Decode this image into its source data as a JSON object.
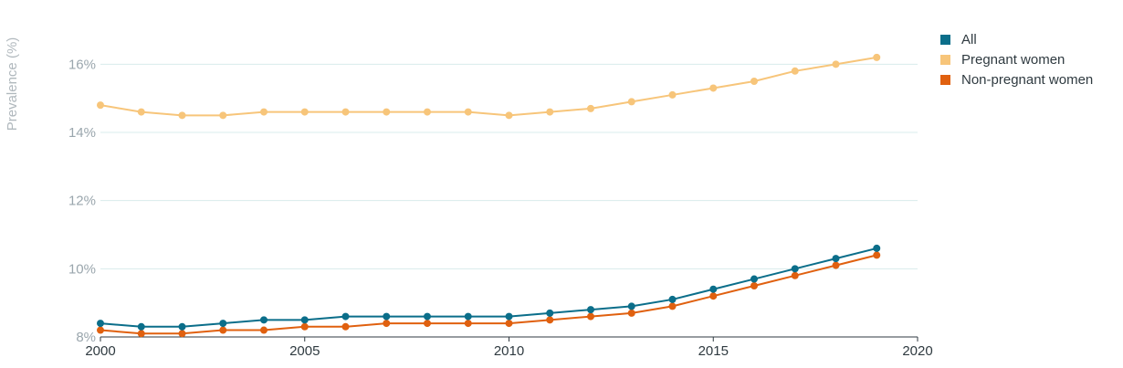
{
  "chart_data": {
    "type": "line",
    "title": "",
    "xlabel": "",
    "ylabel": "Prevalence (%)",
    "x": [
      2000,
      2001,
      2002,
      2003,
      2004,
      2005,
      2006,
      2007,
      2008,
      2009,
      2010,
      2011,
      2012,
      2013,
      2014,
      2015,
      2016,
      2017,
      2018,
      2019
    ],
    "xlim": [
      2000,
      2020
    ],
    "ylim": [
      8,
      17
    ],
    "x_ticks": [
      2000,
      2005,
      2010,
      2015,
      2020
    ],
    "y_ticks": [
      8,
      10,
      12,
      14,
      16
    ],
    "x_tick_labels": [
      "2000",
      "2005",
      "2010",
      "2015",
      "2020"
    ],
    "y_tick_labels": [
      "8%",
      "10%",
      "12%",
      "14%",
      "16%"
    ],
    "grid": "horizontal",
    "legend_position": "top-right",
    "series": [
      {
        "name": "All",
        "color": "#0b6e8a",
        "values": [
          8.4,
          8.3,
          8.3,
          8.4,
          8.5,
          8.5,
          8.6,
          8.6,
          8.6,
          8.6,
          8.6,
          8.7,
          8.8,
          8.9,
          9.1,
          9.4,
          9.7,
          10.0,
          10.3,
          10.6
        ]
      },
      {
        "name": "Pregnant women",
        "color": "#f7c57a",
        "values": [
          14.8,
          14.6,
          14.5,
          14.5,
          14.6,
          14.6,
          14.6,
          14.6,
          14.6,
          14.6,
          14.5,
          14.6,
          14.7,
          14.9,
          15.1,
          15.3,
          15.5,
          15.8,
          16.0,
          16.2
        ]
      },
      {
        "name": "Non-pregnant women",
        "color": "#e0600f",
        "values": [
          8.2,
          8.1,
          8.1,
          8.2,
          8.2,
          8.3,
          8.3,
          8.4,
          8.4,
          8.4,
          8.4,
          8.5,
          8.6,
          8.7,
          8.9,
          9.2,
          9.5,
          9.8,
          10.1,
          10.4
        ]
      }
    ]
  }
}
